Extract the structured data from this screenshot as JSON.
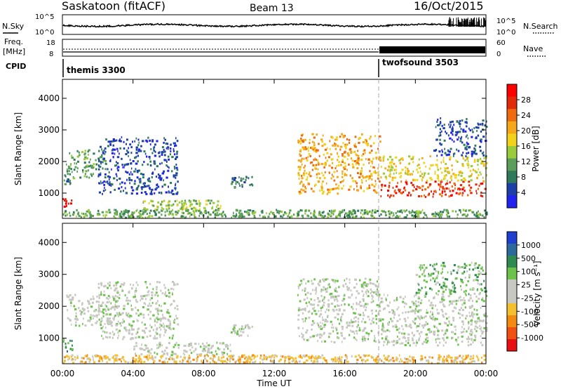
{
  "header": {
    "station": "Saskatoon (fitACF)",
    "beam": "Beam 13",
    "date": "16/Oct/2015"
  },
  "noise_panel": {
    "left_label": "N.Sky",
    "right_label": "N.Search",
    "left_ticks": [
      "10^5",
      "10^0"
    ],
    "right_ticks": [
      "10^5",
      "10^0"
    ]
  },
  "freq_panel": {
    "left_label_1": "Freq.",
    "left_label_2": "[MHz]",
    "right_label": "Nave",
    "left_ticks": [
      "18",
      "8"
    ],
    "right_ticks": [
      "60",
      "0"
    ]
  },
  "cpid": {
    "label": "CPID",
    "modes": [
      {
        "name": "themis 3300",
        "start_hour": 0
      },
      {
        "name": "twofsound 3503",
        "start_hour": 18
      }
    ]
  },
  "xaxis": {
    "label": "Time UT",
    "ticks": [
      "00:00",
      "04:00",
      "08:00",
      "12:00",
      "16:00",
      "20:00",
      "00:00"
    ],
    "range_hours": [
      0,
      24
    ],
    "mode_change_hour": 18
  },
  "power_panel": {
    "ylabel": "Slant Range [km]",
    "yticks": [
      1000,
      2000,
      3000,
      4000
    ],
    "yrange_km": [
      200,
      4600
    ],
    "colorbar_label": "Power [dB]",
    "colorbar_ticks": [
      "4",
      "8",
      "12",
      "16",
      "20",
      "24",
      "28"
    ],
    "colors": [
      "#2222ee",
      "#1c3fa8",
      "#2f7a5a",
      "#5a9e5a",
      "#9acb3a",
      "#f2d21a",
      "#f5a81a",
      "#f06a10",
      "#e02a0a",
      "#ff0000"
    ]
  },
  "velocity_panel": {
    "ylabel": "Slant Range [km]",
    "yticks": [
      1000,
      2000,
      3000,
      4000
    ],
    "yrange_km": [
      200,
      4600
    ],
    "colorbar_label": "Velocity [m s⁻¹]",
    "colorbar_ticks": [
      "1000",
      "500",
      "100",
      "25",
      "-25",
      "-100",
      "-500",
      "-1000"
    ],
    "colors": [
      "#1e3fd0",
      "#2b6a9a",
      "#2e8a50",
      "#6cc24a",
      "#c8c8c2",
      "#c8c8c2",
      "#f5c030",
      "#f58a10",
      "#f05010",
      "#e81010"
    ],
    "ground_scatter_color": "#c8c8c2"
  },
  "chart_data": {
    "type": "heatmap",
    "title": "Saskatoon (fitACF)  Beam 13  16/Oct/2015",
    "x_unit": "hours UT",
    "y_unit": "slant range km",
    "power_bands": [
      {
        "t0": 0.0,
        "t1": 0.6,
        "r0": 1300,
        "r1": 1600,
        "level": 2
      },
      {
        "t0": 0.2,
        "t1": 2.5,
        "r0": 1500,
        "r1": 2400,
        "level": 3
      },
      {
        "t0": 0.0,
        "t1": 0.5,
        "r0": 600,
        "r1": 850,
        "level": 9
      },
      {
        "t0": 2.0,
        "t1": 6.5,
        "r0": 1000,
        "r1": 2800,
        "level": 1
      },
      {
        "t0": 4.5,
        "t1": 9.0,
        "r0": 500,
        "r1": 800,
        "level": 4
      },
      {
        "t0": 9.5,
        "t1": 10.8,
        "r0": 1200,
        "r1": 1550,
        "level": 2
      },
      {
        "t0": 13.3,
        "t1": 18.0,
        "r0": 1000,
        "r1": 2900,
        "level": 6
      },
      {
        "t0": 18.0,
        "t1": 24.0,
        "r0": 900,
        "r1": 1400,
        "level": 8
      },
      {
        "t0": 18.0,
        "t1": 24.0,
        "r0": 1400,
        "r1": 2200,
        "level": 5
      },
      {
        "t0": 21.0,
        "t1": 24.0,
        "r0": 2200,
        "r1": 3400,
        "level": 1
      },
      {
        "t0": 0.0,
        "t1": 24.0,
        "r0": 250,
        "r1": 500,
        "level": 3
      }
    ],
    "velocity_bands": [
      {
        "t0": 0.0,
        "t1": 0.6,
        "r0": 500,
        "r1": 1000,
        "level": 2
      },
      {
        "t0": 0.2,
        "t1": 2.8,
        "r0": 1400,
        "r1": 2400,
        "level": 4
      },
      {
        "t0": 2.0,
        "t1": 6.5,
        "r0": 1000,
        "r1": 2800,
        "level": 4
      },
      {
        "t0": 4.0,
        "t1": 9.5,
        "r0": 500,
        "r1": 900,
        "level": 4
      },
      {
        "t0": 9.5,
        "t1": 10.8,
        "r0": 1100,
        "r1": 1500,
        "level": 4
      },
      {
        "t0": 13.3,
        "t1": 18.0,
        "r0": 900,
        "r1": 2900,
        "level": 4
      },
      {
        "t0": 18.0,
        "t1": 24.0,
        "r0": 800,
        "r1": 2400,
        "level": 4
      },
      {
        "t0": 20.0,
        "t1": 24.0,
        "r0": 2400,
        "r1": 3400,
        "level": 3
      },
      {
        "t0": 0.0,
        "t1": 24.0,
        "r0": 250,
        "r1": 500,
        "level": 6
      }
    ]
  }
}
